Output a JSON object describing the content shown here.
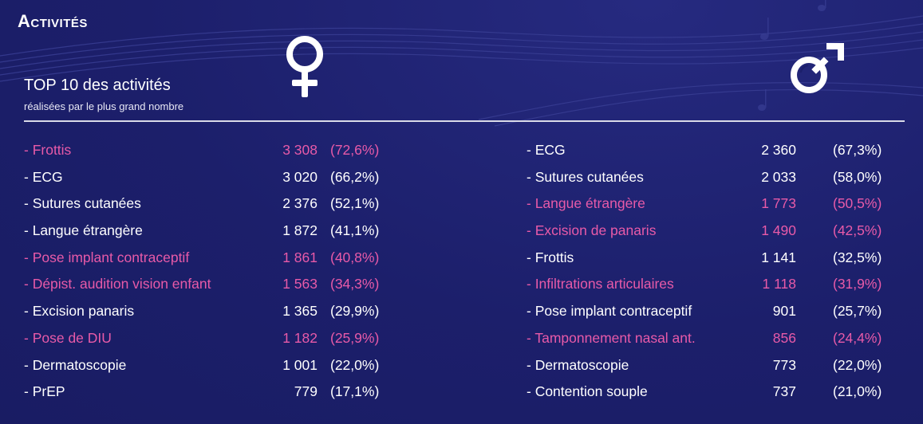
{
  "header": {
    "section_title": "Activités",
    "subtitle_main": "TOP 10 des activités",
    "subtitle_sub": "réalisées par le plus grand nombre"
  },
  "icons": {
    "female": "female-symbol-icon",
    "male": "male-symbol-icon"
  },
  "colors": {
    "background": "#1c1f6b",
    "highlight": "#e85aa8",
    "text": "#ffffff"
  },
  "female_list": [
    {
      "name": "- Frottis",
      "count": "3 308",
      "pct": "(72,6%)",
      "highlight": true
    },
    {
      "name": "- ECG",
      "count": "3 020",
      "pct": "(66,2%)",
      "highlight": false
    },
    {
      "name": "- Sutures cutanées",
      "count": "2 376",
      "pct": "(52,1%)",
      "highlight": false
    },
    {
      "name": "- Langue étrangère",
      "count": "1 872",
      "pct": "(41,1%)",
      "highlight": false
    },
    {
      "name": "- Pose implant contraceptif",
      "count": "1 861",
      "pct": "(40,8%)",
      "highlight": true
    },
    {
      "name": "- Dépist. audition vision enfant",
      "count": "1 563",
      "pct": "(34,3%)",
      "highlight": true
    },
    {
      "name": "- Excision panaris",
      "count": "1 365",
      "pct": "(29,9%)",
      "highlight": false
    },
    {
      "name": "- Pose de DIU",
      "count": "1 182",
      "pct": "(25,9%)",
      "highlight": true
    },
    {
      "name": "- Dermatoscopie",
      "count": "1 001",
      "pct": "(22,0%)",
      "highlight": false
    },
    {
      "name": "- PrEP",
      "count": "779",
      "pct": "(17,1%)",
      "highlight": false
    }
  ],
  "male_list": [
    {
      "name": "- ECG",
      "count": "2 360",
      "pct": "(67,3%)",
      "highlight": false
    },
    {
      "name": "- Sutures cutanées",
      "count": "2 033",
      "pct": "(58,0%)",
      "highlight": false
    },
    {
      "name": "- Langue étrangère",
      "count": "1 773",
      "pct": "(50,5%)",
      "highlight": true
    },
    {
      "name": "- Excision de panaris",
      "count": "1 490",
      "pct": "(42,5%)",
      "highlight": true
    },
    {
      "name": "- Frottis",
      "count": "1 141",
      "pct": "(32,5%)",
      "highlight": false
    },
    {
      "name": "- Infiltrations articulaires",
      "count": "1 118",
      "pct": "(31,9%)",
      "highlight": true
    },
    {
      "name": "- Pose implant contraceptif",
      "count": "901",
      "pct": "(25,7%)",
      "highlight": false
    },
    {
      "name": "- Tamponnement nasal ant.",
      "count": "856",
      "pct": "(24,4%)",
      "highlight": true
    },
    {
      "name": "- Dermatoscopie",
      "count": "773",
      "pct": "(22,0%)",
      "highlight": false
    },
    {
      "name": "- Contention souple",
      "count": "737",
      "pct": "(21,0%)",
      "highlight": false
    }
  ]
}
